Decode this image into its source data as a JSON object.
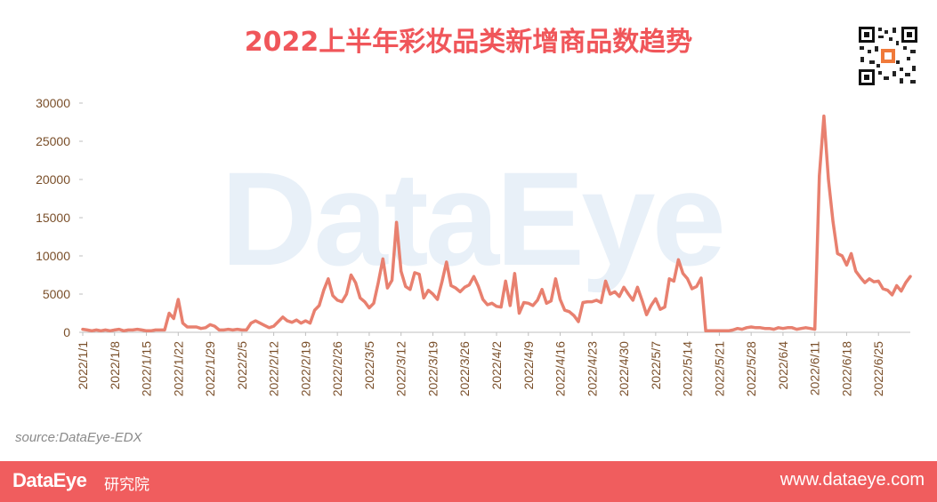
{
  "title": "2022上半年彩妆品类新增商品数趋势",
  "watermark": "DataEye",
  "source": "source:DataEye-EDX",
  "footer": {
    "brand": "DataEye",
    "brand_sub": "研究院",
    "url": "www.dataeye.com"
  },
  "colors": {
    "line": "#e8806f",
    "title": "#f0565a",
    "footer_bg": "#f05d5e",
    "axis_text": "#7a4f2a"
  },
  "chart_data": {
    "type": "line",
    "title": "2022上半年彩妆品类新增商品数趋势",
    "xlabel": "",
    "ylabel": "",
    "ylim": [
      0,
      30000
    ],
    "yticks": [
      0,
      5000,
      10000,
      15000,
      20000,
      25000,
      30000
    ],
    "x_start": "2022/1/1",
    "x_end": "2022/6/30",
    "xtick_labels": [
      "2022/1/1",
      "2022/1/8",
      "2022/1/15",
      "2022/1/22",
      "2022/1/29",
      "2022/2/5",
      "2022/2/12",
      "2022/2/19",
      "2022/2/26",
      "2022/3/5",
      "2022/3/12",
      "2022/3/19",
      "2022/3/26",
      "2022/4/2",
      "2022/4/9",
      "2022/4/16",
      "2022/4/23",
      "2022/4/30",
      "2022/5/7",
      "2022/5/14",
      "2022/5/21",
      "2022/5/28",
      "2022/6/4",
      "2022/6/11",
      "2022/6/18",
      "2022/6/25"
    ],
    "grid": false,
    "series": [
      {
        "values": [
          400,
          300,
          200,
          300,
          200,
          300,
          200,
          300,
          400,
          200,
          300,
          300,
          400,
          300,
          200,
          200,
          300,
          300,
          300,
          2500,
          1800,
          4300,
          1200,
          700,
          700,
          700,
          500,
          600,
          1000,
          800,
          300,
          300,
          400,
          300,
          400,
          300,
          300,
          1200,
          1500,
          1200,
          900,
          600,
          800,
          1400,
          2000,
          1500,
          1300,
          1600,
          1200,
          1500,
          1200,
          2900,
          3500,
          5500,
          7000,
          4800,
          4200,
          4000,
          5000,
          7500,
          6500,
          4500,
          4000,
          3200,
          3800,
          6500,
          9600,
          5800,
          6800,
          14400,
          8000,
          6000,
          5600,
          7800,
          7600,
          4500,
          5500,
          5000,
          4300,
          6600,
          9200,
          6100,
          5800,
          5300,
          5900,
          6200,
          7300,
          6000,
          4300,
          3600,
          3800,
          3400,
          3300,
          6700,
          3500,
          7700,
          2500,
          3900,
          3800,
          3500,
          4200,
          5600,
          3800,
          4100,
          7000,
          4300,
          2900,
          2700,
          2200,
          1400,
          3900,
          4000,
          4000,
          4200,
          3900,
          6700,
          5000,
          5300,
          4700,
          5900,
          5000,
          4200,
          5900,
          4200,
          2300,
          3500,
          4400,
          3000,
          3300,
          7000,
          6700,
          9500,
          7700,
          7000,
          5700,
          6000,
          7100,
          200,
          200,
          200,
          200,
          200,
          200,
          300,
          500,
          400,
          600,
          700,
          600,
          600,
          500,
          500,
          400,
          600,
          500,
          600,
          600,
          400,
          500,
          600,
          500,
          400,
          20500,
          28300,
          20000,
          14500,
          10300,
          10000,
          8800,
          10300,
          8000,
          7200,
          6500,
          7000,
          6600,
          6700,
          5700,
          5500,
          4900,
          6100,
          5400,
          6500,
          7300
        ]
      }
    ]
  }
}
